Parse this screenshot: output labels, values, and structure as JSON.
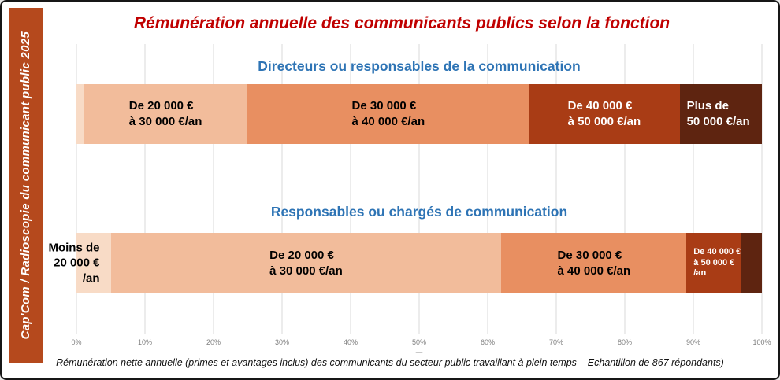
{
  "sidebar": {
    "label": "Cap'Com / Radioscopie du communicant public 2025",
    "background": "#B5491D",
    "text_color": "#FFFFFF"
  },
  "title": {
    "text": "Rémunération annuelle des communicants publics selon la fonction",
    "color": "#C00000"
  },
  "subtitle_color": "#2E74B5",
  "axis": {
    "ticks": [
      "0%",
      "10%",
      "20%",
      "30%",
      "40%",
      "50%",
      "60%",
      "70%",
      "80%",
      "90%",
      "100%"
    ],
    "gridline_color": "#D9D9D9",
    "tick_color": "#808080"
  },
  "footer": {
    "text": "Rémunération nette annuelle (primes et avantages inclus) des communicants du secteur public travaillant à plein temps – Echantillon de 867 répondants)"
  },
  "palette": {
    "moins_20k": "#F8DBC6",
    "de_20_30k": "#F2BC9B",
    "de_30_40k": "#E88F61",
    "de_40_50k": "#A93C15",
    "plus_50k": "#5E2410"
  },
  "chart_data": {
    "type": "bar",
    "orientation": "horizontal_stacked",
    "title": "Rémunération annuelle des communicants publics selon la fonction",
    "categories": [
      "Directeurs ou responsables de la communication",
      "Responsables ou chargés de communication"
    ],
    "segment_labels": [
      "Moins de 20 000 €/an",
      "De 20 000 € à 30 000 €/an",
      "De 30 000 € à 40 000 €/an",
      "De 40 000 € à 50 000 €/an",
      "Plus de 50 000 €/an"
    ],
    "series": [
      {
        "name": "Directeurs ou responsables de la communication",
        "values": [
          1,
          24,
          41,
          22,
          12
        ]
      },
      {
        "name": "Responsables ou chargés de communication",
        "values": [
          5,
          57,
          27,
          8,
          3
        ]
      }
    ],
    "unit": "percent",
    "xlim": [
      0,
      100
    ],
    "x_ticks": [
      "0%",
      "10%",
      "20%",
      "30%",
      "40%",
      "50%",
      "60%",
      "70%",
      "80%",
      "90%",
      "100%"
    ],
    "grid": true,
    "legend": false
  },
  "bars": [
    {
      "subtitle": "Directeurs ou responsables de la communication",
      "segments": [
        {
          "value": 1,
          "color": "#F8DBC6",
          "text_color": "#000000",
          "align": "center",
          "lines": []
        },
        {
          "value": 24,
          "color": "#F2BC9B",
          "text_color": "#000000",
          "align": "center",
          "lines": [
            "De 20 000 €",
            "à 30 000 €/an"
          ]
        },
        {
          "value": 41,
          "color": "#E88F61",
          "text_color": "#000000",
          "align": "center",
          "lines": [
            "De 30 000 €",
            "à 40 000 €/an"
          ]
        },
        {
          "value": 22,
          "color": "#A93C15",
          "text_color": "#FFFFFF",
          "align": "center",
          "lines": [
            "De 40 000 €",
            "à 50 000 €/an"
          ]
        },
        {
          "value": 12,
          "color": "#5E2410",
          "text_color": "#FFFFFF",
          "align": "start",
          "lines": [
            "Plus de",
            "50 000 €/an"
          ]
        }
      ]
    },
    {
      "subtitle": "Responsables ou chargés de communication",
      "segments": [
        {
          "value": 5,
          "color": "#F8DBC6",
          "text_color": "#000000",
          "align": "outside-left",
          "lines": [
            "Moins de",
            "20 000 €",
            "/an"
          ]
        },
        {
          "value": 57,
          "color": "#F2BC9B",
          "text_color": "#000000",
          "align": "center",
          "lines": [
            "De 20 000 €",
            "à 30 000 €/an"
          ]
        },
        {
          "value": 27,
          "color": "#E88F61",
          "text_color": "#000000",
          "align": "center",
          "lines": [
            "De 30 000 €",
            "à 40 000 €/an"
          ]
        },
        {
          "value": 8,
          "color": "#A93C15",
          "text_color": "#FFFFFF",
          "align": "start",
          "small": true,
          "lines": [
            "De 40 000 €",
            "à 50 000 €",
            "/an"
          ]
        },
        {
          "value": 3,
          "color": "#5E2410",
          "text_color": "#FFFFFF",
          "align": "center",
          "lines": []
        }
      ]
    }
  ]
}
